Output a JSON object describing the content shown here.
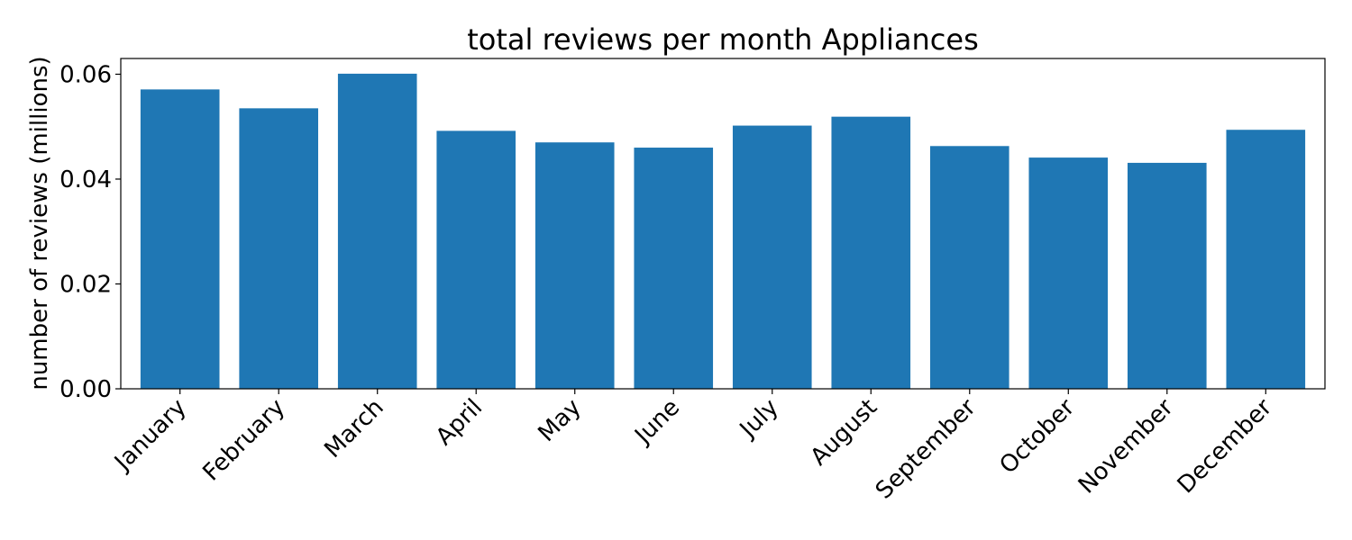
{
  "chart_data": {
    "type": "bar",
    "title": "total reviews per month Appliances",
    "xlabel": "",
    "ylabel": "number of reviews (millions)",
    "categories": [
      "January",
      "February",
      "March",
      "April",
      "May",
      "June",
      "July",
      "August",
      "September",
      "October",
      "November",
      "December"
    ],
    "values": [
      0.0571,
      0.0535,
      0.0601,
      0.0492,
      0.047,
      0.046,
      0.0502,
      0.0519,
      0.0463,
      0.0441,
      0.0431,
      0.0494
    ],
    "ylim": [
      0,
      0.063
    ],
    "yticks": [
      "0.00",
      "0.02",
      "0.04",
      "0.06"
    ],
    "ytick_values": [
      0,
      0.02,
      0.04,
      0.06
    ],
    "grid": false,
    "bar_color": "#1f77b4"
  }
}
